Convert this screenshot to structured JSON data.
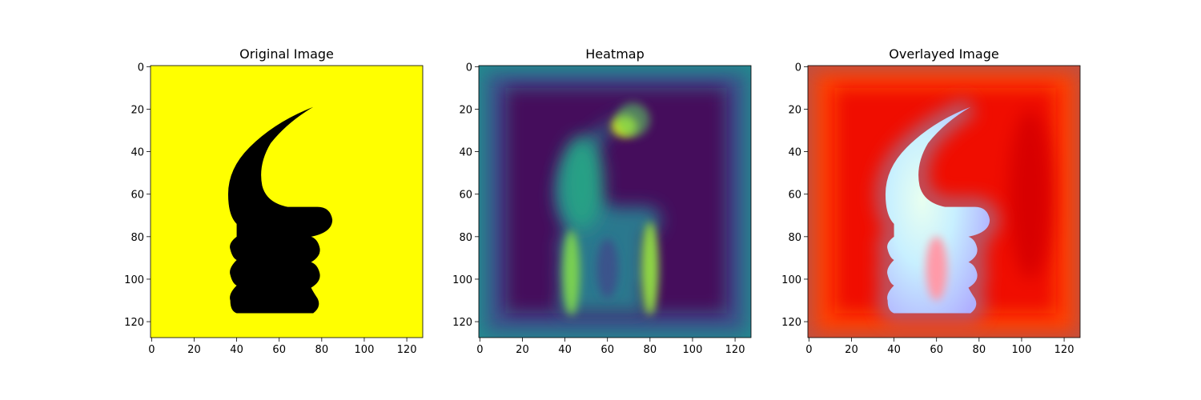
{
  "chart_data": [
    {
      "type": "image",
      "title": "Original Image",
      "xlim": [
        -0.5,
        127.5
      ],
      "ylim": [
        127.5,
        -0.5
      ],
      "xticks": [
        0,
        20,
        40,
        60,
        80,
        100,
        120
      ],
      "yticks": [
        0,
        20,
        40,
        60,
        80,
        100,
        120
      ]
    },
    {
      "type": "image",
      "title": "Heatmap",
      "xlim": [
        -0.5,
        127.5
      ],
      "ylim": [
        127.5,
        -0.5
      ],
      "xticks": [
        0,
        20,
        40,
        60,
        80,
        100,
        120
      ],
      "yticks": [
        0,
        20,
        40,
        60,
        80,
        100,
        120
      ]
    },
    {
      "type": "image",
      "title": "Overlayed Image",
      "xlim": [
        -0.5,
        127.5
      ],
      "ylim": [
        127.5,
        -0.5
      ],
      "xticks": [
        0,
        20,
        40,
        60,
        80,
        100,
        120
      ],
      "yticks": [
        0,
        20,
        40,
        60,
        80,
        100,
        120
      ]
    }
  ]
}
